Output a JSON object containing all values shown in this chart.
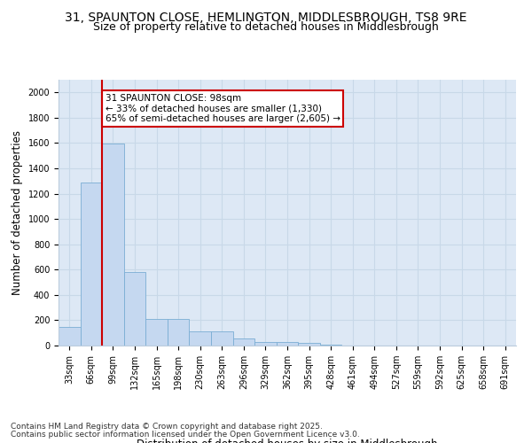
{
  "title_line1": "31, SPAUNTON CLOSE, HEMLINGTON, MIDDLESBROUGH, TS8 9RE",
  "title_line2": "Size of property relative to detached houses in Middlesbrough",
  "xlabel": "Distribution of detached houses by size in Middlesbrough",
  "ylabel": "Number of detached properties",
  "categories": [
    "33sqm",
    "66sqm",
    "99sqm",
    "132sqm",
    "165sqm",
    "198sqm",
    "230sqm",
    "263sqm",
    "296sqm",
    "329sqm",
    "362sqm",
    "395sqm",
    "428sqm",
    "461sqm",
    "494sqm",
    "527sqm",
    "559sqm",
    "592sqm",
    "625sqm",
    "658sqm",
    "691sqm"
  ],
  "values": [
    150,
    1290,
    1595,
    580,
    210,
    210,
    115,
    115,
    55,
    30,
    30,
    18,
    8,
    0,
    0,
    0,
    0,
    0,
    0,
    0,
    0
  ],
  "bar_color": "#c5d8f0",
  "bar_edge_color": "#7aadd4",
  "vline_color": "#cc0000",
  "vline_x_index": 2,
  "annotation_text": "31 SPAUNTON CLOSE: 98sqm\n← 33% of detached houses are smaller (1,330)\n65% of semi-detached houses are larger (2,605) →",
  "annotation_box_color": "#ffffff",
  "annotation_box_edge_color": "#cc0000",
  "ylim": [
    0,
    2100
  ],
  "yticks": [
    0,
    200,
    400,
    600,
    800,
    1000,
    1200,
    1400,
    1600,
    1800,
    2000
  ],
  "grid_color": "#c8d8e8",
  "background_color": "#dde8f5",
  "footer_line1": "Contains HM Land Registry data © Crown copyright and database right 2025.",
  "footer_line2": "Contains public sector information licensed under the Open Government Licence v3.0.",
  "title_fontsize": 10,
  "subtitle_fontsize": 9,
  "tick_fontsize": 7,
  "label_fontsize": 8.5,
  "footer_fontsize": 6.5,
  "annotation_fontsize": 7.5
}
